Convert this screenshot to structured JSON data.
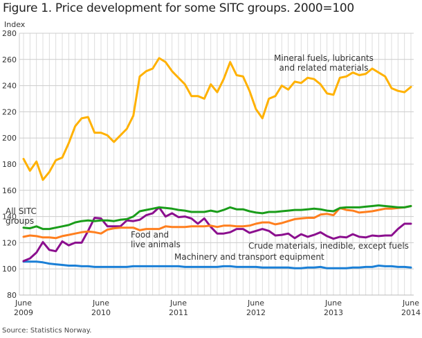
{
  "header": {
    "title": "Figure 1. Price development for some SITC groups. 2000=100"
  },
  "footer": {
    "source": "Source: Statistics Norway."
  },
  "chart_data": {
    "type": "line",
    "title": "Figure 1. Price development for some SITC groups. 2000=100",
    "xlabel": "",
    "ylabel": "Index",
    "ylim": [
      80,
      280
    ],
    "yticks": [
      80,
      100,
      120,
      140,
      160,
      180,
      200,
      220,
      240,
      260,
      280
    ],
    "grid": true,
    "x_start": "June 2009",
    "x_end": "June 2014",
    "x_frequency": "monthly",
    "xtick_labels": [
      {
        "index": 0,
        "line1": "June",
        "line2": "2009"
      },
      {
        "index": 12,
        "line1": "June",
        "line2": "2010"
      },
      {
        "index": 24,
        "line1": "June",
        "line2": "2011"
      },
      {
        "index": 36,
        "line1": "June",
        "line2": "2012"
      },
      {
        "index": 48,
        "line1": "June",
        "line2": "2013"
      },
      {
        "index": 60,
        "line1": "June",
        "line2": "2014"
      }
    ],
    "series": [
      {
        "name": "Mineral fuels, lubricants and related materials",
        "label_lines": [
          "Mineral fuels, lubricants",
          "and related materials"
        ],
        "color": "#FFB100",
        "values": [
          184,
          175,
          182,
          168,
          174,
          183,
          185,
          196,
          209,
          215,
          216,
          204,
          204,
          202,
          197,
          202,
          207,
          217,
          247,
          251,
          253,
          261,
          258,
          251,
          246,
          241,
          232,
          232,
          230,
          241,
          235,
          245,
          258,
          248,
          247,
          236,
          222,
          215,
          230,
          232,
          240,
          237,
          243,
          242,
          246,
          245,
          241,
          234,
          233,
          246,
          247,
          250,
          248,
          249,
          253,
          250,
          247,
          238,
          236,
          235,
          239
        ]
      },
      {
        "name": "All SITC groups",
        "label_lines": [
          "All SITC",
          "groups"
        ],
        "color": "#1A9D1A",
        "values": [
          131.5,
          131,
          132.5,
          130.5,
          130.5,
          131.5,
          132.5,
          133.5,
          135.5,
          136.5,
          137,
          136.5,
          137,
          137,
          136.5,
          137.5,
          138,
          140,
          144,
          145,
          146,
          147,
          146.5,
          146,
          145,
          144.5,
          143.5,
          143.5,
          143.5,
          144.5,
          143.5,
          145,
          147,
          145.5,
          145.5,
          144,
          143,
          142.5,
          143.5,
          143.5,
          144,
          144.5,
          145,
          145,
          145.5,
          146,
          145.5,
          144.5,
          144,
          146.5,
          147,
          147,
          147,
          147.5,
          148,
          148.5,
          148,
          147.5,
          147,
          147,
          148
        ]
      },
      {
        "name": "Food and live animals",
        "label_lines": [
          "Food and",
          "live animals"
        ],
        "color": "#FF7F1E",
        "values": [
          124.5,
          125.5,
          125,
          124,
          124,
          123.5,
          125,
          126,
          127,
          128,
          128.5,
          128,
          127,
          130,
          131,
          131.5,
          131.5,
          131.5,
          129.5,
          130.5,
          130.5,
          130.5,
          132.5,
          132,
          132,
          132,
          132.5,
          132.5,
          132.5,
          133,
          132,
          133,
          133,
          132.5,
          132.5,
          133,
          134.5,
          135.5,
          135.5,
          134,
          135,
          136.5,
          138,
          138.5,
          139,
          139,
          141.5,
          142,
          141,
          146.5,
          145,
          144.5,
          143,
          143.5,
          144,
          145,
          146,
          146,
          146.5,
          147,
          148
        ]
      },
      {
        "name": "Crude materials, inedible, except fuels",
        "label_lines": [
          "Crude materials, inedible, except fuels"
        ],
        "color": "#8B0F8E",
        "values": [
          106,
          108,
          112.5,
          120.5,
          114.5,
          113.5,
          121,
          118,
          120,
          120,
          129,
          139,
          138.5,
          132.5,
          132.5,
          132.5,
          137,
          136.5,
          137.5,
          141,
          142.5,
          147,
          140,
          142.5,
          139.5,
          140,
          138.5,
          134.5,
          138.5,
          132,
          127,
          127,
          128,
          130.5,
          130.5,
          127.5,
          129,
          130.5,
          129,
          125.5,
          126,
          127,
          123.5,
          126.5,
          124.5,
          126,
          128,
          125,
          123,
          124.5,
          124,
          126.5,
          124.5,
          124,
          125.5,
          125,
          125.5,
          125.5,
          130.5,
          134.5,
          134.5
        ]
      },
      {
        "name": "Machinery and transport equipment",
        "label_lines": [
          "Machinery and transport equipment"
        ],
        "color": "#1A7FD6",
        "values": [
          105.5,
          105.5,
          105.5,
          105,
          104,
          103.5,
          103,
          102.5,
          102.5,
          102,
          102,
          101.5,
          101.5,
          101.5,
          101.5,
          101.5,
          101.5,
          102,
          102,
          102,
          102,
          102,
          102,
          102,
          102,
          101.5,
          101.5,
          101.5,
          101.5,
          101.5,
          101.5,
          102,
          102,
          101.5,
          101.5,
          101.5,
          101.5,
          101,
          101,
          101,
          101,
          101,
          100.5,
          100.5,
          101,
          101,
          101.5,
          100.5,
          100.5,
          100.5,
          100.5,
          101,
          101,
          101.5,
          101.5,
          102.5,
          102,
          102,
          101.5,
          101.5,
          101
        ]
      }
    ]
  }
}
